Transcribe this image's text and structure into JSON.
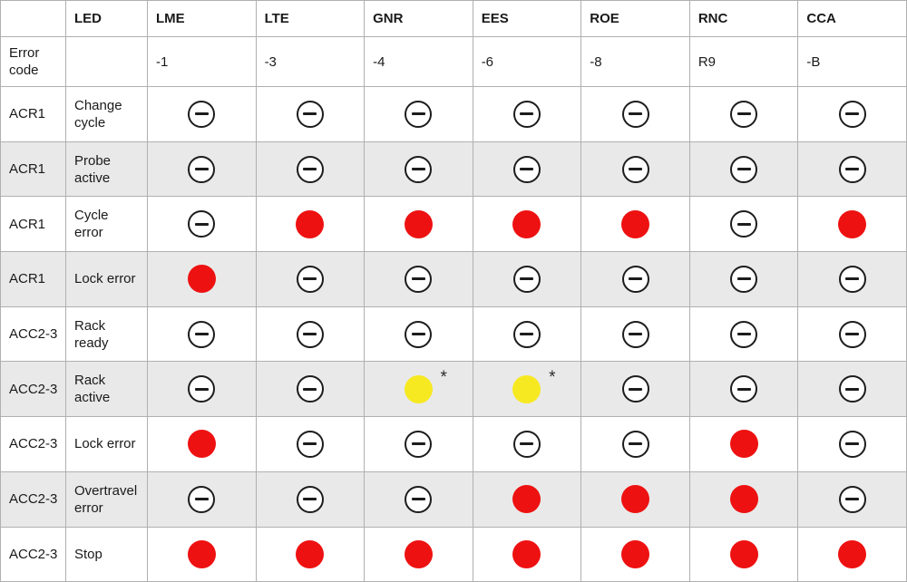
{
  "colors": {
    "led_red": "#ee1111",
    "led_yellow": "#f7e921",
    "led_off_outline": "#1c1c1c",
    "row_shade": "#e9e9e9",
    "grid_border": "#b0b0b0",
    "text": "#1a1a1a"
  },
  "table": {
    "corner": "",
    "led_column_header": "LED",
    "device_headers": [
      "LME",
      "LTE",
      "GNR",
      "EES",
      "ROE",
      "RNC",
      "CCA"
    ],
    "error_code_label_lines": [
      "Error",
      "code"
    ],
    "error_codes": [
      "-1",
      "-3",
      "-4",
      "-6",
      "-8",
      "R9",
      "-B"
    ],
    "footnote_marker": "*",
    "state_legend": {
      "off": "circle-minus-icon",
      "red": "red-dot-indicator",
      "yellow*": "yellow-dot-indicator-with-asterisk"
    },
    "rows": [
      {
        "device": "ACR1",
        "led_lines": [
          "Change",
          "cycle"
        ],
        "states": [
          "off",
          "off",
          "off",
          "off",
          "off",
          "off",
          "off"
        ]
      },
      {
        "device": "ACR1",
        "led_lines": [
          "Probe",
          "active"
        ],
        "states": [
          "off",
          "off",
          "off",
          "off",
          "off",
          "off",
          "off"
        ]
      },
      {
        "device": "ACR1",
        "led_lines": [
          "Cycle",
          "error"
        ],
        "states": [
          "off",
          "red",
          "red",
          "red",
          "red",
          "off",
          "red"
        ]
      },
      {
        "device": "ACR1",
        "led_lines": [
          "Lock error"
        ],
        "states": [
          "red",
          "off",
          "off",
          "off",
          "off",
          "off",
          "off"
        ]
      },
      {
        "device": "ACC2-3",
        "led_lines": [
          "Rack",
          "ready"
        ],
        "states": [
          "off",
          "off",
          "off",
          "off",
          "off",
          "off",
          "off"
        ]
      },
      {
        "device": "ACC2-3",
        "led_lines": [
          "Rack",
          "active"
        ],
        "states": [
          "off",
          "off",
          "yellow*",
          "yellow*",
          "off",
          "off",
          "off"
        ]
      },
      {
        "device": "ACC2-3",
        "led_lines": [
          "Lock error"
        ],
        "states": [
          "red",
          "off",
          "off",
          "off",
          "off",
          "red",
          "off"
        ]
      },
      {
        "device": "ACC2-3",
        "led_lines": [
          "Overtravel",
          "error"
        ],
        "states": [
          "off",
          "off",
          "off",
          "red",
          "red",
          "red",
          "off"
        ]
      },
      {
        "device": "ACC2-3",
        "led_lines": [
          "Stop"
        ],
        "states": [
          "red",
          "red",
          "red",
          "red",
          "red",
          "red",
          "red"
        ]
      }
    ]
  }
}
